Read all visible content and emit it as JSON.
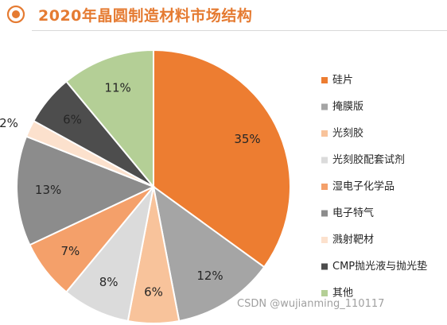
{
  "header": {
    "icon_name": "target-circle-icon",
    "title": "2020年晶圆制造材料市场结构"
  },
  "watermark": "CSDN @wujianming_110117",
  "colors": {
    "accent": "#E57B32"
  },
  "chart_data": {
    "type": "pie",
    "title": "2020年晶圆制造材料市场结构",
    "legend_position": "right",
    "start_angle_deg": 0,
    "direction": "clockwise",
    "slices": [
      {
        "name": "硅片",
        "value": 35,
        "label": "35%",
        "color": "#ED7D31"
      },
      {
        "name": "掩膜版",
        "value": 12,
        "label": "12%",
        "color": "#A5A5A5"
      },
      {
        "name": "光刻胶",
        "value": 6,
        "label": "6%",
        "color": "#F8C39B"
      },
      {
        "name": "光刻胶配套试剂",
        "value": 8,
        "label": "8%",
        "color": "#DBDBDB"
      },
      {
        "name": "湿电子化学品",
        "value": 7,
        "label": "7%",
        "color": "#F4A06A"
      },
      {
        "name": "电子特气",
        "value": 13,
        "label": "13%",
        "color": "#8C8C8C"
      },
      {
        "name": "溅射靶材",
        "value": 2,
        "label": "2%",
        "color": "#FCE1CD"
      },
      {
        "name": "CMP抛光液与抛光垫",
        "value": 6,
        "label": "6%",
        "color": "#4D4D4D"
      },
      {
        "name": "其他",
        "value": 11,
        "label": "11%",
        "color": "#B4CF96"
      }
    ]
  }
}
